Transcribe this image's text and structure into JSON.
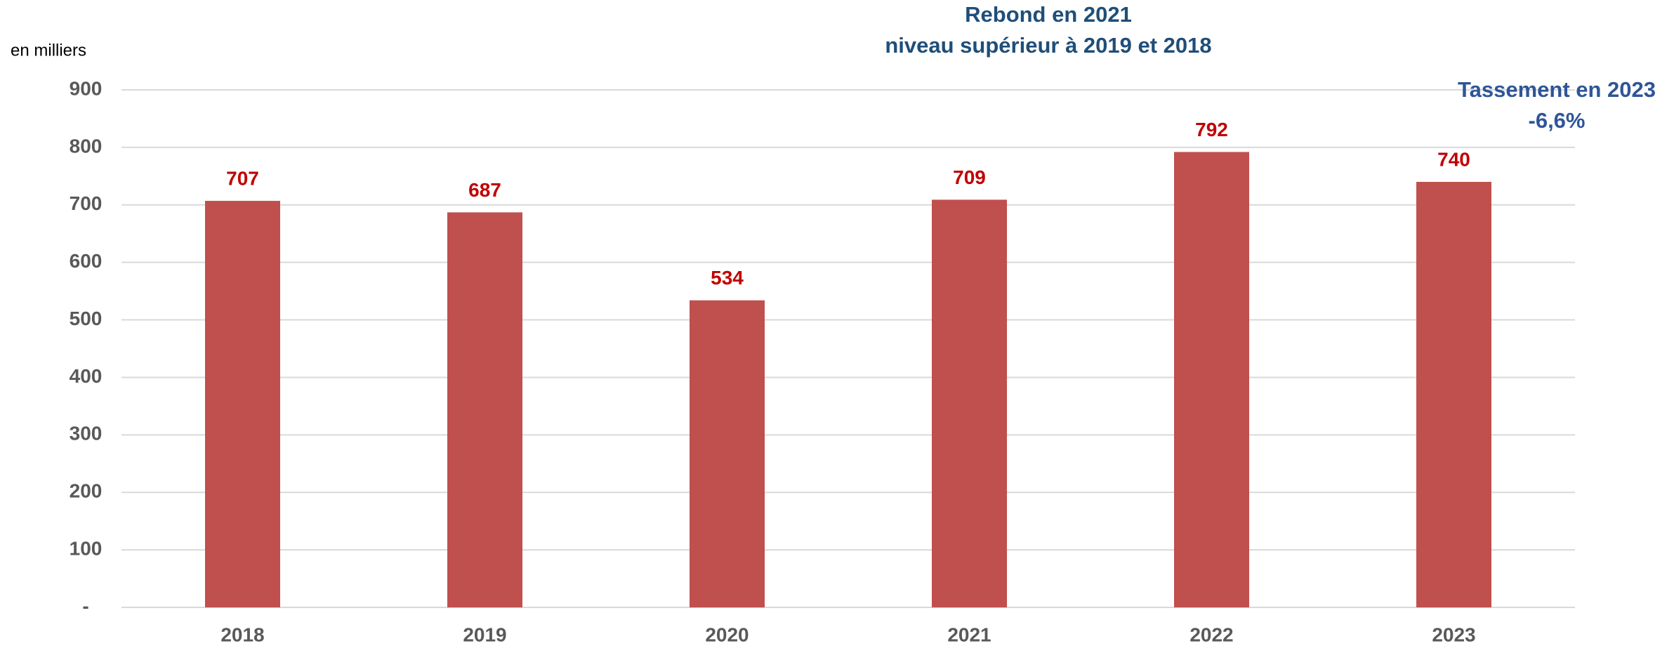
{
  "chart_data": {
    "type": "bar",
    "y_axis_label": "en milliers",
    "annotations": [
      {
        "lines": [
          "Rebond en 2021",
          "niveau supérieur à 2019 et 2018"
        ],
        "color": "#1f4e79"
      },
      {
        "lines": [
          "Tassement en 2023",
          "-6,6%"
        ],
        "color": "#2f5597"
      }
    ],
    "categories": [
      "2018",
      "2019",
      "2020",
      "2021",
      "2022",
      "2023"
    ],
    "values": [
      707,
      687,
      534,
      709,
      792,
      740
    ],
    "color": "#c0504d",
    "ylim": [
      0,
      900
    ],
    "yticks": [
      {
        "value": 0,
        "label": "-"
      },
      100,
      200,
      300,
      400,
      500,
      600,
      700,
      800,
      900
    ],
    "grid": true
  }
}
